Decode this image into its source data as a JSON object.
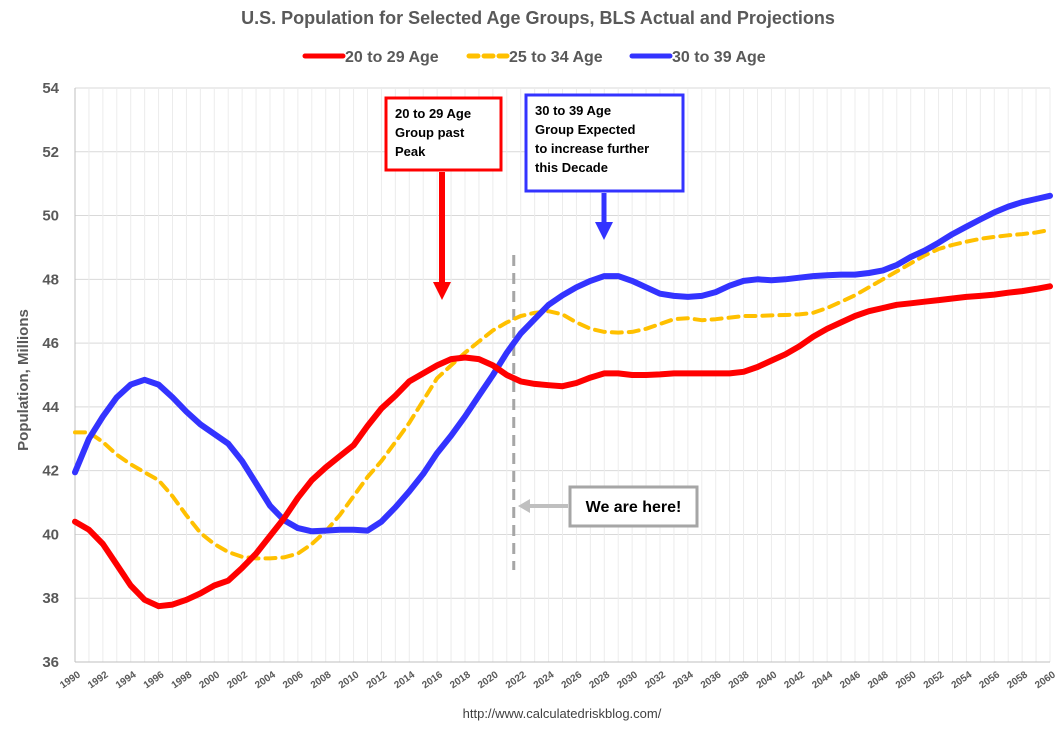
{
  "chart_data": {
    "type": "line",
    "title": "U.S. Population for Selected Age Groups, BLS Actual and Projections",
    "xlabel": "",
    "ylabel": "Population, Millions",
    "xlim": [
      1990,
      2060
    ],
    "ylim": [
      36,
      54
    ],
    "yticks": [
      36,
      38,
      40,
      42,
      44,
      46,
      48,
      50,
      52,
      54
    ],
    "xticks": [
      "1990",
      "1992",
      "1994",
      "1996",
      "1998",
      "2000",
      "2002",
      "2004",
      "2006",
      "2008",
      "2010",
      "2012",
      "2014",
      "2016",
      "2018",
      "2020",
      "2022",
      "2024",
      "2026",
      "2028",
      "2030",
      "2032",
      "2034",
      "2036",
      "2038",
      "2040",
      "2042",
      "2044",
      "2046",
      "2048",
      "2050",
      "2052",
      "2054",
      "2056",
      "2058",
      "2060"
    ],
    "legend_position": "top",
    "source": "http://www.calculatedriskblog.com/",
    "series": [
      {
        "name": "20 to 29 Age",
        "color": "#ff0000",
        "style": "solid",
        "x": [
          1990,
          1991,
          1992,
          1993,
          1994,
          1995,
          1996,
          1997,
          1998,
          1999,
          2000,
          2001,
          2002,
          2003,
          2004,
          2005,
          2006,
          2007,
          2008,
          2009,
          2010,
          2011,
          2012,
          2013,
          2014,
          2015,
          2016,
          2017,
          2018,
          2019,
          2020,
          2021,
          2022,
          2023,
          2024,
          2025,
          2026,
          2027,
          2028,
          2029,
          2030,
          2031,
          2032,
          2033,
          2034,
          2035,
          2036,
          2037,
          2038,
          2039,
          2040,
          2041,
          2042,
          2043,
          2044,
          2045,
          2046,
          2047,
          2048,
          2049,
          2050,
          2051,
          2052,
          2053,
          2054,
          2055,
          2056,
          2057,
          2058,
          2059,
          2060
        ],
        "values": [
          40.4,
          40.15,
          39.7,
          39.05,
          38.4,
          37.95,
          37.75,
          37.8,
          37.95,
          38.15,
          38.4,
          38.55,
          38.95,
          39.4,
          39.95,
          40.5,
          41.15,
          41.7,
          42.1,
          42.45,
          42.8,
          43.4,
          43.95,
          44.35,
          44.8,
          45.05,
          45.3,
          45.5,
          45.55,
          45.5,
          45.3,
          45.0,
          44.8,
          44.72,
          44.68,
          44.65,
          44.75,
          44.92,
          45.05,
          45.05,
          45.0,
          45.0,
          45.02,
          45.05,
          45.05,
          45.05,
          45.05,
          45.05,
          45.1,
          45.25,
          45.45,
          45.65,
          45.9,
          46.2,
          46.45,
          46.65,
          46.85,
          47.0,
          47.1,
          47.2,
          47.25,
          47.3,
          47.35,
          47.4,
          47.45,
          47.48,
          47.52,
          47.58,
          47.63,
          47.7,
          47.78
        ]
      },
      {
        "name": "25 to 34 Age",
        "color": "#ffc000",
        "style": "dashed",
        "x": [
          1990,
          1991,
          1992,
          1993,
          1994,
          1995,
          1996,
          1997,
          1998,
          1999,
          2000,
          2001,
          2002,
          2003,
          2004,
          2005,
          2006,
          2007,
          2008,
          2009,
          2010,
          2011,
          2012,
          2013,
          2014,
          2015,
          2016,
          2017,
          2018,
          2019,
          2020,
          2021,
          2022,
          2023,
          2024,
          2025,
          2026,
          2027,
          2028,
          2029,
          2030,
          2031,
          2032,
          2033,
          2034,
          2035,
          2036,
          2037,
          2038,
          2039,
          2040,
          2041,
          2042,
          2043,
          2044,
          2045,
          2046,
          2047,
          2048,
          2049,
          2050,
          2051,
          2052,
          2053,
          2054,
          2055,
          2056,
          2057,
          2058,
          2059,
          2060
        ],
        "values": [
          43.2,
          43.2,
          42.9,
          42.5,
          42.2,
          41.95,
          41.7,
          41.2,
          40.6,
          40.05,
          39.7,
          39.45,
          39.3,
          39.25,
          39.25,
          39.28,
          39.4,
          39.7,
          40.1,
          40.6,
          41.2,
          41.8,
          42.3,
          42.9,
          43.5,
          44.2,
          44.9,
          45.3,
          45.7,
          46.05,
          46.4,
          46.65,
          46.85,
          46.95,
          47.0,
          46.9,
          46.65,
          46.45,
          46.35,
          46.33,
          46.35,
          46.45,
          46.6,
          46.75,
          46.78,
          46.72,
          46.75,
          46.8,
          46.85,
          46.85,
          46.87,
          46.88,
          46.9,
          46.95,
          47.1,
          47.3,
          47.5,
          47.75,
          48.0,
          48.25,
          48.5,
          48.75,
          48.95,
          49.08,
          49.18,
          49.27,
          49.33,
          49.38,
          49.42,
          49.47,
          49.55
        ]
      },
      {
        "name": "30 to 39 Age",
        "color": "#3333ff",
        "style": "solid",
        "x": [
          1990,
          1991,
          1992,
          1993,
          1994,
          1995,
          1996,
          1997,
          1998,
          1999,
          2000,
          2001,
          2002,
          2003,
          2004,
          2005,
          2006,
          2007,
          2008,
          2009,
          2010,
          2011,
          2012,
          2013,
          2014,
          2015,
          2016,
          2017,
          2018,
          2019,
          2020,
          2021,
          2022,
          2023,
          2024,
          2025,
          2026,
          2027,
          2028,
          2029,
          2030,
          2031,
          2032,
          2033,
          2034,
          2035,
          2036,
          2037,
          2038,
          2039,
          2040,
          2041,
          2042,
          2043,
          2044,
          2045,
          2046,
          2047,
          2048,
          2049,
          2050,
          2051,
          2052,
          2053,
          2054,
          2055,
          2056,
          2057,
          2058,
          2059,
          2060
        ],
        "values": [
          41.95,
          43.0,
          43.7,
          44.3,
          44.7,
          44.85,
          44.7,
          44.3,
          43.85,
          43.45,
          43.15,
          42.85,
          42.3,
          41.6,
          40.9,
          40.45,
          40.2,
          40.1,
          40.12,
          40.15,
          40.15,
          40.12,
          40.4,
          40.85,
          41.35,
          41.9,
          42.55,
          43.1,
          43.7,
          44.35,
          45.0,
          45.7,
          46.3,
          46.75,
          47.2,
          47.5,
          47.75,
          47.95,
          48.1,
          48.1,
          47.95,
          47.75,
          47.55,
          47.48,
          47.45,
          47.48,
          47.6,
          47.8,
          47.95,
          48.0,
          47.97,
          48.0,
          48.05,
          48.1,
          48.13,
          48.15,
          48.15,
          48.2,
          48.28,
          48.45,
          48.7,
          48.9,
          49.15,
          49.42,
          49.65,
          49.88,
          50.1,
          50.28,
          50.42,
          50.52,
          50.62
        ]
      }
    ],
    "annotations": [
      {
        "lines": [
          "20 to 29 Age",
          "Group past",
          "Peak"
        ],
        "border_color": "#ff0000",
        "arrow_color": "#ff0000"
      },
      {
        "lines": [
          "30 to 39 Age",
          "Group Expected",
          "to increase further",
          "this Decade"
        ],
        "border_color": "#3333ff",
        "arrow_color": "#3333ff"
      },
      {
        "lines": [
          "We are here!"
        ],
        "border_color": "#a6a6a6",
        "arrow_color": "#bfbfbf"
      }
    ],
    "marker_line": {
      "x": 2021.5,
      "label": "We are here!",
      "color": "#a6a6a6"
    }
  }
}
